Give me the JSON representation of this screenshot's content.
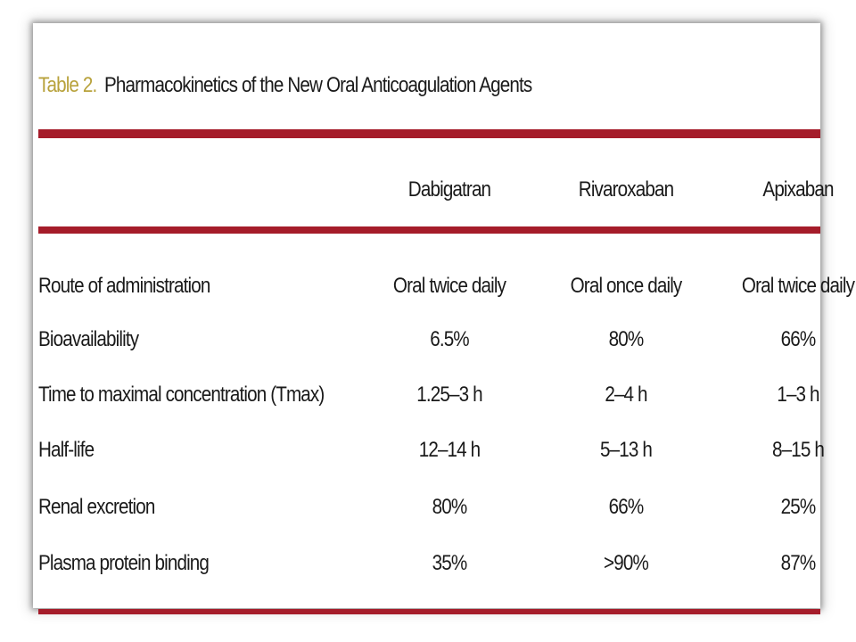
{
  "table": {
    "label": "Table 2.",
    "title": "Pharmacokinetics of the New Oral Anticoagulation Agents",
    "columns": [
      "Dabigatran",
      "Rivaroxaban",
      "Apixaban"
    ],
    "rows": [
      {
        "parameter": "Route of administration",
        "values": [
          "Oral twice daily",
          "Oral once daily",
          "Oral twice daily"
        ]
      },
      {
        "parameter": "Bioavailability",
        "values": [
          "6.5%",
          "80%",
          "66%"
        ]
      },
      {
        "parameter": "Time to maximal concentration (Tmax)",
        "values": [
          "1.25–3 h",
          "2–4 h",
          "1–3 h"
        ]
      },
      {
        "parameter": "Half-life",
        "values": [
          "12–14 h",
          "5–13 h",
          "8–15 h"
        ]
      },
      {
        "parameter": "Renal excretion",
        "values": [
          "80%",
          "66%",
          "25%"
        ]
      },
      {
        "parameter": "Plasma protein binding",
        "values": [
          "35%",
          ">90%",
          "87%"
        ]
      }
    ]
  },
  "colors": {
    "rule": "#a51c2a",
    "label": "#b8a23c",
    "text": "#1a1a1a"
  }
}
